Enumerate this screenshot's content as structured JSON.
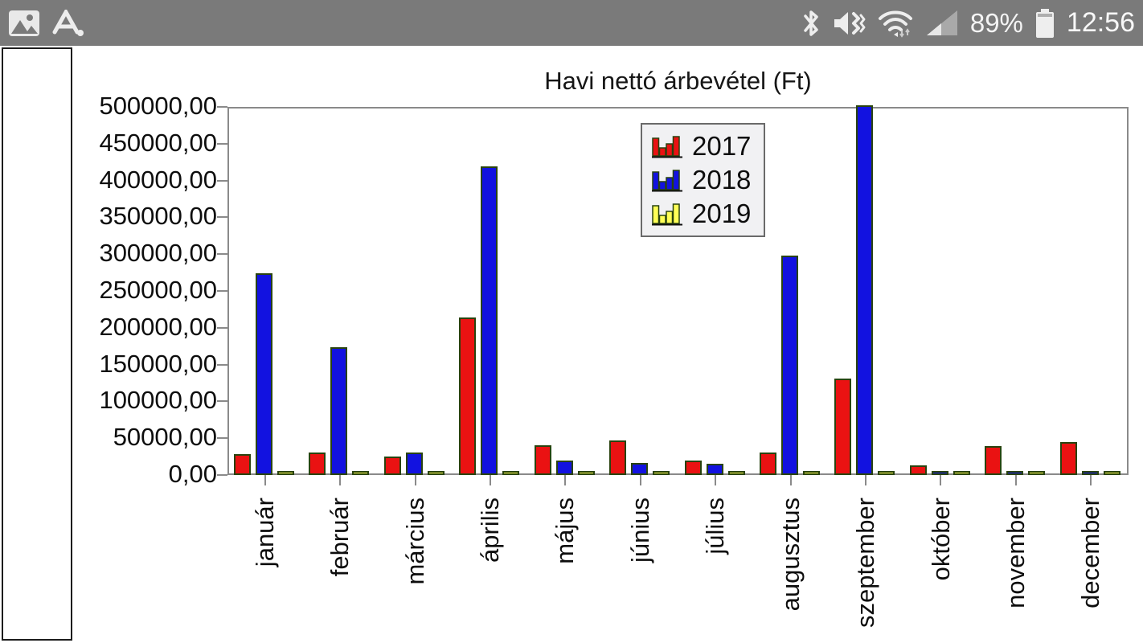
{
  "status_bar": {
    "battery_percent": "89%",
    "time": "12:56",
    "notification_icons": [
      "gallery-icon",
      "a-dot-icon"
    ],
    "system_icons": [
      "bluetooth-icon",
      "mute-vibrate-icon",
      "wifi-icon",
      "cell-signal-icon",
      "battery-icon"
    ],
    "background_color": "#7a7a7a"
  },
  "chart_data": {
    "type": "bar",
    "title": "Havi nettó árbevétel (Ft)",
    "categories": [
      "január",
      "február",
      "március",
      "április",
      "május",
      "június",
      "július",
      "augusztus",
      "szeptember",
      "október",
      "november",
      "december"
    ],
    "series": [
      {
        "name": "2017",
        "color": "#ea1212",
        "values": [
          26000,
          28000,
          23000,
          212000,
          38000,
          45000,
          17000,
          28000,
          129000,
          11000,
          37000,
          43000
        ]
      },
      {
        "name": "2018",
        "color": "#1212e0",
        "values": [
          272000,
          171000,
          28000,
          417000,
          18000,
          14000,
          13000,
          296000,
          500000,
          2000,
          2000,
          2000
        ]
      },
      {
        "name": "2019",
        "color": "#ffff57",
        "values": [
          2000,
          2000,
          2000,
          2000,
          2000,
          2000,
          2000,
          2000,
          2000,
          2000,
          2000,
          2000
        ]
      }
    ],
    "bar_border_color": "#29430f",
    "ylim": [
      0,
      500000
    ],
    "ytick_labels": [
      "500000,00",
      "450000,00",
      "400000,00",
      "350000,00",
      "300000,00",
      "250000,00",
      "200000,00",
      "150000,00",
      "100000,00",
      "50000,00",
      "0,00"
    ],
    "legend_position": "inside-top-center",
    "grid": false,
    "axis_color": "#8a8a8a"
  }
}
